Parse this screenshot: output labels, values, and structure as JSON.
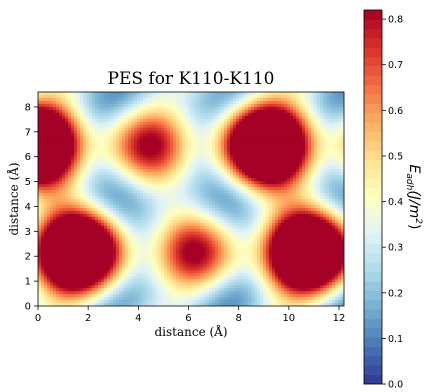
{
  "chart_data": {
    "type": "heatmap",
    "title": "PES for K110-K110",
    "xlabel": "distance (Å)",
    "ylabel": "distance (Å)",
    "xlim": [
      0,
      12.2
    ],
    "ylim": [
      0,
      8.6
    ],
    "x_ticks": [
      0,
      2,
      4,
      6,
      8,
      10,
      12
    ],
    "y_ticks": [
      0,
      1,
      2,
      3,
      4,
      5,
      6,
      7,
      8
    ],
    "colorbar": {
      "label": "E_adh (J/m²)",
      "label_main": "E",
      "label_sub": "adh",
      "label_tail": "(J/m",
      "label_sup": "2",
      "label_close": ")",
      "range": [
        0.0,
        0.82
      ],
      "ticks": [
        "0.0",
        "0.1",
        "0.2",
        "0.3",
        "0.4",
        "0.5",
        "0.6",
        "0.7",
        "0.8"
      ],
      "colormap": "RdYlBu_r"
    },
    "peaks": [
      {
        "x": 0.0,
        "y": 6.45,
        "value": 0.82
      },
      {
        "x": 4.6,
        "y": 6.45,
        "value": 0.82
      },
      {
        "x": 9.2,
        "y": 6.45,
        "value": 0.82
      },
      {
        "x": 1.5,
        "y": 2.15,
        "value": 0.82
      },
      {
        "x": 6.1,
        "y": 2.15,
        "value": 0.82
      },
      {
        "x": 10.7,
        "y": 2.15,
        "value": 0.82
      }
    ],
    "minima_value": 0.0
  }
}
